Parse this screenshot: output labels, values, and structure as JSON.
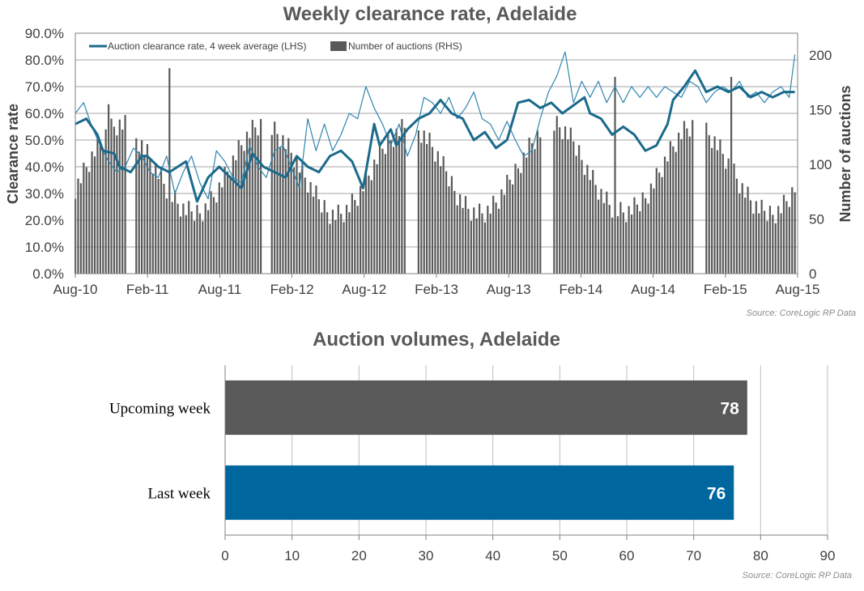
{
  "chart_data": [
    {
      "type": "line",
      "title": "Weekly clearance rate, Adelaide",
      "ylabel": "Clearance rate",
      "y2label": "Number of auctions",
      "ylim": [
        0,
        90
      ],
      "y2lim": [
        0,
        220
      ],
      "x_ticks": [
        "Aug-10",
        "Feb-11",
        "Aug-11",
        "Feb-12",
        "Aug-12",
        "Feb-13",
        "Aug-13",
        "Feb-14",
        "Aug-14",
        "Feb-15",
        "Aug-15"
      ],
      "y_ticks": [
        "0.0%",
        "10.0%",
        "20.0%",
        "30.0%",
        "40.0%",
        "50.0%",
        "60.0%",
        "70.0%",
        "80.0%",
        "90.0%"
      ],
      "y2_ticks": [
        "0",
        "50",
        "100",
        "150",
        "200"
      ],
      "grid": true,
      "legend_position": "top-left",
      "legend": [
        "Auction clearance rate, 4 week average (LHS)",
        "Number of auctions (RHS)"
      ],
      "weeks_total": 261,
      "series": [
        {
          "name": "Auction clearance rate, 4 week average (LHS)",
          "axis": "left",
          "unit": "%",
          "color": "#1b6a8c",
          "x_weeks": [
            0,
            4,
            8,
            10,
            14,
            16,
            20,
            24,
            26,
            30,
            34,
            40,
            44,
            48,
            52,
            56,
            60,
            64,
            68,
            72,
            76,
            80,
            84,
            88,
            92,
            96,
            100,
            104,
            108,
            110,
            114,
            116,
            120,
            124,
            128,
            132,
            136,
            140,
            144,
            148,
            152,
            156,
            160,
            164,
            168,
            172,
            176,
            180,
            184,
            186,
            190,
            194,
            198,
            202,
            206,
            210,
            214,
            216,
            220,
            224,
            228,
            232,
            236,
            240,
            244,
            248,
            252,
            256,
            260
          ],
          "values": [
            56,
            58,
            52,
            46,
            45,
            40,
            38,
            44,
            44,
            40,
            38,
            42,
            27,
            36,
            40,
            36,
            32,
            45,
            40,
            38,
            36,
            44,
            40,
            38,
            44,
            46,
            42,
            32,
            56,
            48,
            54,
            48,
            54,
            58,
            60,
            65,
            60,
            58,
            50,
            53,
            47,
            50,
            64,
            65,
            62,
            64,
            60,
            63,
            66,
            60,
            58,
            52,
            55,
            52,
            46,
            48,
            56,
            65,
            70,
            76,
            68,
            70,
            68,
            70,
            66,
            68,
            66,
            68,
            68
          ]
        },
        {
          "name": "Weekly clearance rate",
          "axis": "left",
          "unit": "%",
          "color": "#2f86b0",
          "x_weeks": [
            0,
            3,
            6,
            9,
            12,
            15,
            18,
            21,
            24,
            27,
            30,
            33,
            36,
            39,
            42,
            45,
            48,
            51,
            54,
            57,
            60,
            63,
            66,
            69,
            72,
            75,
            78,
            81,
            84,
            87,
            90,
            93,
            96,
            99,
            102,
            105,
            108,
            111,
            114,
            117,
            120,
            123,
            126,
            129,
            132,
            135,
            138,
            141,
            144,
            147,
            150,
            153,
            156,
            159,
            162,
            165,
            168,
            171,
            174,
            177,
            180,
            183,
            186,
            189,
            192,
            195,
            198,
            201,
            204,
            207,
            210,
            213,
            216,
            219,
            222,
            225,
            228,
            231,
            234,
            237,
            240,
            243,
            246,
            249,
            252,
            255,
            258,
            260
          ],
          "values": [
            60,
            64,
            55,
            48,
            42,
            38,
            40,
            47,
            44,
            38,
            36,
            44,
            30,
            38,
            44,
            34,
            28,
            46,
            42,
            36,
            34,
            48,
            40,
            36,
            46,
            48,
            40,
            32,
            58,
            46,
            56,
            46,
            52,
            60,
            58,
            70,
            62,
            56,
            48,
            56,
            44,
            52,
            66,
            64,
            60,
            66,
            58,
            62,
            68,
            58,
            56,
            50,
            57,
            50,
            44,
            46,
            58,
            68,
            74,
            83,
            64,
            72,
            66,
            72,
            64,
            70,
            64,
            70,
            66,
            70,
            66,
            70,
            68,
            66,
            72,
            70,
            64,
            68,
            70,
            68,
            72,
            66,
            68,
            64,
            68,
            70,
            66,
            82
          ]
        },
        {
          "name": "Number of auctions (RHS)",
          "type": "bar",
          "axis": "right",
          "color": "#595959",
          "gaps_weeks": [
            [
              19,
              21
            ],
            [
              68,
              70
            ],
            [
              120,
              123
            ],
            [
              169,
              172
            ],
            [
              224,
              227
            ]
          ],
          "spikes": [
            {
              "week": 12,
              "value": 155
            },
            {
              "week": 34,
              "value": 188
            },
            {
              "week": 195,
              "value": 180
            },
            {
              "week": 237,
              "value": 180
            }
          ],
          "typical_range": [
            55,
            135
          ]
        }
      ],
      "source": "Source: CoreLogic RP Data"
    },
    {
      "type": "bar",
      "orientation": "horizontal",
      "title": "Auction volumes, Adelaide",
      "categories": [
        "Upcoming week",
        "Last week"
      ],
      "values": [
        78,
        76
      ],
      "colors": [
        "#595959",
        "#00669e"
      ],
      "xlim": [
        0,
        90
      ],
      "x_ticks": [
        "0",
        "10",
        "20",
        "30",
        "40",
        "50",
        "60",
        "70",
        "80",
        "90"
      ],
      "grid": true,
      "source": "Source: CoreLogic RP Data"
    }
  ]
}
